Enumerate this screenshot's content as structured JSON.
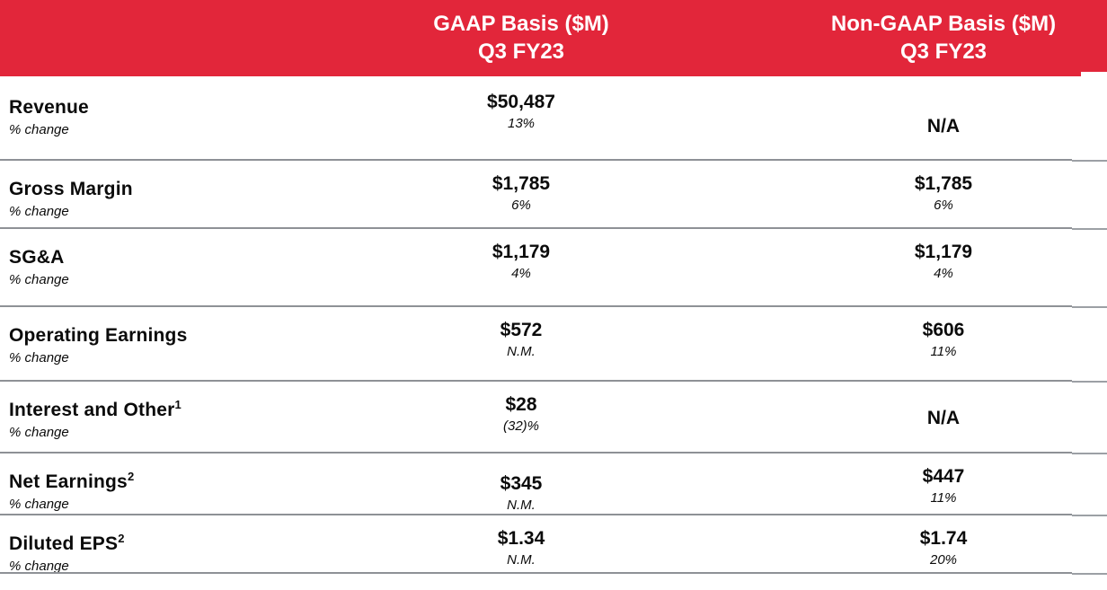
{
  "table": {
    "title_columns": [
      {
        "line1": "GAAP Basis ($M)",
        "line2": "Q3 FY23"
      },
      {
        "line1": "Non-GAAP Basis ($M)",
        "line2": "Q3 FY23"
      }
    ],
    "change_label": "% change",
    "rows": [
      {
        "label": "Revenue",
        "sup": "",
        "gaap": {
          "value": "$50,487",
          "change": "13%"
        },
        "non_gaap": {
          "value": "N/A",
          "change": ""
        }
      },
      {
        "label": "Gross Margin",
        "sup": "",
        "gaap": {
          "value": "$1,785",
          "change": "6%"
        },
        "non_gaap": {
          "value": "$1,785",
          "change": "6%"
        }
      },
      {
        "label": "SG&A",
        "sup": "",
        "gaap": {
          "value": "$1,179",
          "change": "4%"
        },
        "non_gaap": {
          "value": "$1,179",
          "change": "4%"
        }
      },
      {
        "label": "Operating Earnings",
        "sup": "",
        "gaap": {
          "value": "$572",
          "change": "N.M."
        },
        "non_gaap": {
          "value": "$606",
          "change": "11%"
        }
      },
      {
        "label": "Interest and Other",
        "sup": "1",
        "gaap": {
          "value": "$28",
          "change": "(32)%"
        },
        "non_gaap": {
          "value": "N/A",
          "change": ""
        }
      },
      {
        "label": "Net Earnings",
        "sup": "2",
        "gaap": {
          "value": "$345",
          "change": "N.M."
        },
        "non_gaap": {
          "value": "$447",
          "change": "11%"
        }
      },
      {
        "label": "Diluted EPS",
        "sup": "2",
        "gaap": {
          "value": "$1.34",
          "change": "N.M."
        },
        "non_gaap": {
          "value": "$1.74",
          "change": "20%"
        }
      }
    ],
    "colors": {
      "header_background": "#E2263A",
      "header_text": "#FFFFFF",
      "divider": "#8E9196",
      "body_text": "#0B0B0B"
    }
  }
}
